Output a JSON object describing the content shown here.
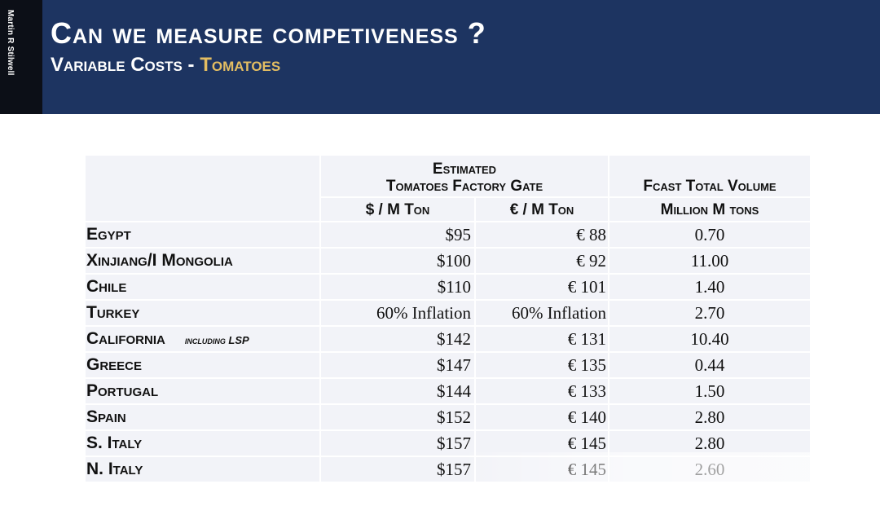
{
  "side_label": "Martin R Stilwell",
  "header": {
    "title": "Can we measure competiveness ?",
    "subtitle_main": "Variable Costs - ",
    "subtitle_accent": "Tomatoes"
  },
  "table": {
    "group_header_line1": "Estimated",
    "group_header_line2": "Tomatoes Factory Gate",
    "volume_header": "Fcast Total Volume",
    "usd_header": "$ / M Ton",
    "eur_header": "€ / M Ton",
    "volume_unit_header": "Million M tons",
    "rows": [
      {
        "country": "Egypt",
        "note": "",
        "usd": "$95",
        "eur": "€ 88",
        "volume": "0.70"
      },
      {
        "country": "Xinjiang/I Mongolia",
        "note": "",
        "usd": "$100",
        "eur": "€ 92",
        "volume": "11.00"
      },
      {
        "country": "Chile",
        "note": "",
        "usd": "$110",
        "eur": "€ 101",
        "volume": "1.40"
      },
      {
        "country": "Turkey",
        "note": "",
        "usd": "60% Inflation",
        "eur": "60% Inflation",
        "volume": "2.70"
      },
      {
        "country": "California",
        "note": "including LSP",
        "usd": "$142",
        "eur": "€ 131",
        "volume": "10.40"
      },
      {
        "country": "Greece",
        "note": "",
        "usd": "$147",
        "eur": "€ 135",
        "volume": "0.44"
      },
      {
        "country": "Portugal",
        "note": "",
        "usd": "$144",
        "eur": "€ 133",
        "volume": "1.50"
      },
      {
        "country": "Spain",
        "note": "",
        "usd": "$152",
        "eur": "€ 140",
        "volume": "2.80"
      },
      {
        "country": "S. Italy",
        "note": "",
        "usd": "$157",
        "eur": "€ 145",
        "volume": "2.80"
      },
      {
        "country": "N. Italy",
        "note": "",
        "usd": "$157",
        "eur": "€ 145",
        "volume": "2.60"
      }
    ]
  }
}
